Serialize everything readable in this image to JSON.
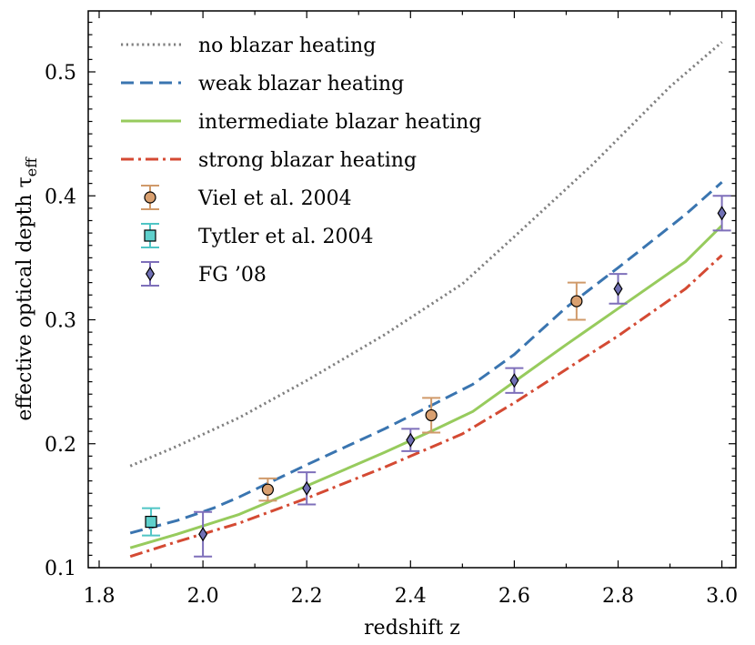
{
  "chart_data": {
    "type": "line",
    "title": "",
    "xlabel": "redshift z",
    "ylabel_main": "effective optical depth τ",
    "ylabel_sub": "eff",
    "xlim": [
      1.8,
      3.05
    ],
    "ylim": [
      0.1,
      0.55
    ],
    "xticks": [
      1.8,
      2.0,
      2.2,
      2.4,
      2.6,
      2.8,
      3.0
    ],
    "xtick_labels": [
      "1.8",
      "2.0",
      "2.2",
      "2.4",
      "2.6",
      "2.8",
      "3.0"
    ],
    "yticks": [
      0.1,
      0.2,
      0.3,
      0.4,
      0.5
    ],
    "ytick_labels": [
      "0.1",
      "0.2",
      "0.3",
      "0.4",
      "0.5"
    ],
    "legend_position": "top-left",
    "series": [
      {
        "name": "no blazar heating",
        "style": "dotted",
        "color": "#808080",
        "x": [
          1.86,
          1.95,
          2.07,
          2.2,
          2.35,
          2.5,
          2.6,
          2.75,
          2.9,
          3.0
        ],
        "y": [
          0.182,
          0.198,
          0.221,
          0.251,
          0.288,
          0.329,
          0.367,
          0.425,
          0.488,
          0.524
        ]
      },
      {
        "name": "weak blazar heating",
        "style": "dashed",
        "color": "#3a75b0",
        "x": [
          1.86,
          1.95,
          2.02,
          2.07,
          2.2,
          2.35,
          2.45,
          2.52,
          2.6,
          2.7,
          2.8,
          2.93,
          3.0
        ],
        "y": [
          0.128,
          0.138,
          0.148,
          0.157,
          0.183,
          0.212,
          0.233,
          0.248,
          0.272,
          0.31,
          0.342,
          0.385,
          0.411
        ]
      },
      {
        "name": "intermediate blazar heating",
        "style": "solid",
        "color": "#97cb5d",
        "x": [
          1.86,
          1.95,
          2.07,
          2.2,
          2.35,
          2.45,
          2.52,
          2.6,
          2.7,
          2.8,
          2.93,
          3.0
        ],
        "y": [
          0.116,
          0.127,
          0.143,
          0.166,
          0.193,
          0.212,
          0.226,
          0.25,
          0.28,
          0.309,
          0.347,
          0.376
        ]
      },
      {
        "name": "strong blazar heating",
        "style": "dashdot",
        "color": "#d44a33",
        "x": [
          1.86,
          1.95,
          2.07,
          2.2,
          2.35,
          2.5,
          2.6,
          2.7,
          2.8,
          2.93,
          3.0
        ],
        "y": [
          0.109,
          0.121,
          0.136,
          0.156,
          0.181,
          0.208,
          0.233,
          0.26,
          0.287,
          0.325,
          0.352
        ]
      }
    ],
    "errorbars": [
      {
        "name": "Viel et al. 2004",
        "marker": "circle",
        "marker_color": "#d9a070",
        "bar_color": "#d09a6a",
        "points": [
          {
            "x": 2.125,
            "y": 0.163,
            "err": 0.009
          },
          {
            "x": 2.44,
            "y": 0.223,
            "err": 0.014
          },
          {
            "x": 2.72,
            "y": 0.315,
            "err": 0.015
          }
        ]
      },
      {
        "name": "Tytler et al. 2004",
        "marker": "square",
        "marker_color": "#5fd0cc",
        "bar_color": "#4fc5c5",
        "points": [
          {
            "x": 1.9,
            "y": 0.137,
            "err": 0.011
          }
        ]
      },
      {
        "name": "FG ’08",
        "marker": "diamond",
        "marker_color": "#7070b5",
        "bar_color": "#7e6fba",
        "points": [
          {
            "x": 2.0,
            "y": 0.127,
            "err": 0.018
          },
          {
            "x": 2.2,
            "y": 0.164,
            "err": 0.013
          },
          {
            "x": 2.4,
            "y": 0.203,
            "err": 0.009
          },
          {
            "x": 2.6,
            "y": 0.251,
            "err": 0.01
          },
          {
            "x": 2.8,
            "y": 0.325,
            "err": 0.012
          },
          {
            "x": 3.0,
            "y": 0.386,
            "err": 0.014
          }
        ]
      }
    ]
  }
}
